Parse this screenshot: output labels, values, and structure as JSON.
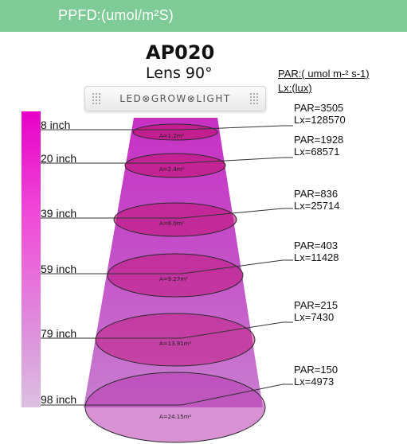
{
  "header": {
    "title": "PPFD:(umol/m²S)",
    "background": "#7ecb97"
  },
  "model": "AP020",
  "lens": "Lens 90°",
  "legend": {
    "par_unit": "PAR:( umol m-² s-1)",
    "lx_unit": "Lx:(lux)"
  },
  "lamp": {
    "brand_text": "LED⊗GROW⊗LIGHT"
  },
  "colors": {
    "beam_top": "#c630c4",
    "beam_bottom": "#c87ed0",
    "ellipse_fill": "#c2187e",
    "scale_top": "#e800c8"
  },
  "levels": [
    {
      "depth": "8 inch",
      "area": "A=1.2m²",
      "par": "PAR=3505",
      "lx": "Lx=128570"
    },
    {
      "depth": "20 inch",
      "area": "A=2.4m²",
      "par": "PAR=1928",
      "lx": "Lx=68571"
    },
    {
      "depth": "39 inch",
      "area": "A=6.0m²",
      "par": "PAR=836",
      "lx": "Lx=25714"
    },
    {
      "depth": "59 inch",
      "area": "A=9.27m²",
      "par": "PAR=403",
      "lx": "Lx=11428"
    },
    {
      "depth": "79 inch",
      "area": "A=13.91m²",
      "par": "PAR=215",
      "lx": "Lx=7430"
    },
    {
      "depth": "98 inch",
      "area": "A=24.15m²",
      "par": "PAR=150",
      "lx": "Lx=4973"
    }
  ]
}
